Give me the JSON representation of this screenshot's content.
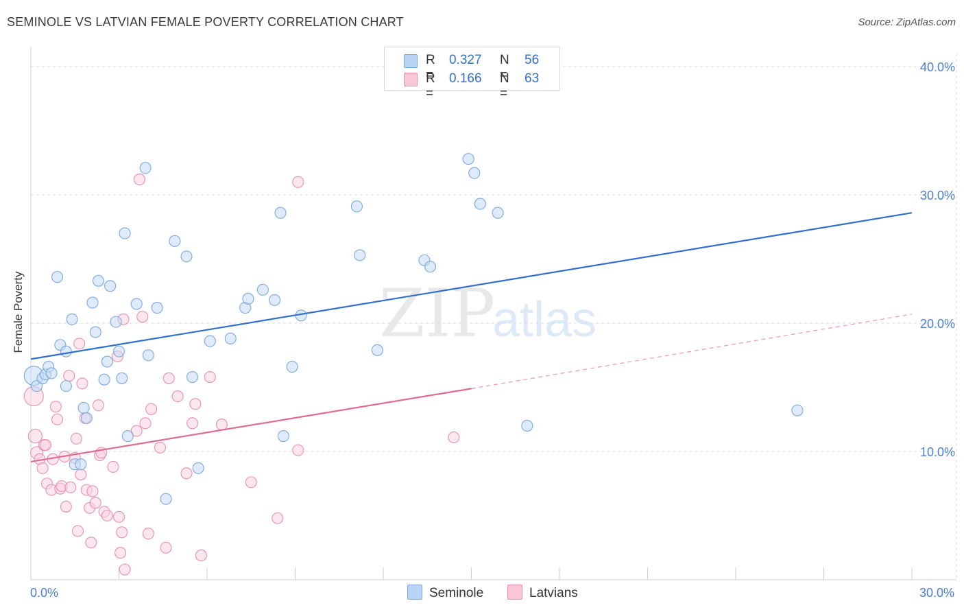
{
  "title": "SEMINOLE VS LATVIAN FEMALE POVERTY CORRELATION CHART",
  "source": "Source: ZipAtlas.com",
  "watermark": {
    "part1": "ZIP",
    "part2": "atlas"
  },
  "legend": {
    "r_label": "R =",
    "n_label": "N =",
    "entries": [
      {
        "name": "Seminole",
        "r": "0.327",
        "n": "56",
        "fill": "#b8d3f3",
        "stroke": "#7aa8e0"
      },
      {
        "name": "Latvians",
        "r": "0.166",
        "n": "63",
        "fill": "#f9c6d6",
        "stroke": "#e88fae"
      }
    ]
  },
  "colors": {
    "seminole_point": "#7aa8e0",
    "seminole_fill": "#c5dbf5",
    "seminole_line": "#2f6fd0",
    "latvian_point": "#e88fae",
    "latvian_fill": "#fad3e0",
    "latvian_line": "#e06a93",
    "axis_text": "#4a7fd0"
  },
  "chart_data": {
    "type": "scatter",
    "title": "SEMINOLE VS LATVIAN FEMALE POVERTY CORRELATION CHART",
    "xlabel": "",
    "ylabel": "Female Poverty",
    "xlim": [
      0,
      30
    ],
    "ylim": [
      0,
      40
    ],
    "x_tick_labels": [
      {
        "value": 0,
        "label": "0.0%"
      },
      {
        "value": 30,
        "label": "30.0%"
      }
    ],
    "y_tick_labels": [
      {
        "value": 10,
        "label": "10.0%"
      },
      {
        "value": 20,
        "label": "20.0%"
      },
      {
        "value": 30,
        "label": "30.0%"
      },
      {
        "value": 40,
        "label": "40.0%"
      }
    ],
    "grid": true,
    "series": [
      {
        "name": "Seminole",
        "trend": {
          "x0": 0,
          "y0": 17.2,
          "x1": 30,
          "y1": 28.6,
          "dashed_from": null
        },
        "points": [
          [
            0.1,
            15.9,
            14
          ],
          [
            0.2,
            15.1,
            8
          ],
          [
            0.4,
            15.7,
            8
          ],
          [
            0.5,
            16.0,
            8
          ],
          [
            0.6,
            16.6,
            8
          ],
          [
            0.7,
            16.1,
            8
          ],
          [
            0.9,
            23.6,
            8
          ],
          [
            1.0,
            18.3,
            8
          ],
          [
            1.2,
            17.8,
            8
          ],
          [
            1.2,
            15.1,
            8
          ],
          [
            1.4,
            20.3,
            8
          ],
          [
            1.5,
            9.0,
            8
          ],
          [
            1.7,
            9.0,
            8
          ],
          [
            1.8,
            13.4,
            8
          ],
          [
            1.9,
            12.6,
            8
          ],
          [
            2.1,
            21.6,
            8
          ],
          [
            2.2,
            19.3,
            8
          ],
          [
            2.3,
            23.3,
            8
          ],
          [
            2.5,
            15.6,
            8
          ],
          [
            2.6,
            17.0,
            8
          ],
          [
            2.7,
            22.9,
            8
          ],
          [
            2.9,
            20.1,
            8
          ],
          [
            3.0,
            17.8,
            8
          ],
          [
            3.1,
            15.7,
            8
          ],
          [
            3.2,
            27.0,
            8
          ],
          [
            3.3,
            11.2,
            8
          ],
          [
            3.6,
            21.5,
            8
          ],
          [
            3.9,
            32.1,
            8
          ],
          [
            4.0,
            17.5,
            8
          ],
          [
            4.3,
            21.2,
            8
          ],
          [
            4.6,
            6.3,
            8
          ],
          [
            4.9,
            26.4,
            8
          ],
          [
            5.3,
            25.2,
            8
          ],
          [
            5.5,
            15.8,
            8
          ],
          [
            5.7,
            8.7,
            8
          ],
          [
            6.1,
            18.6,
            8
          ],
          [
            6.8,
            18.8,
            8
          ],
          [
            7.3,
            21.2,
            8
          ],
          [
            7.4,
            21.9,
            8
          ],
          [
            7.9,
            22.6,
            8
          ],
          [
            8.3,
            21.8,
            8
          ],
          [
            8.5,
            28.6,
            8
          ],
          [
            8.6,
            11.2,
            8
          ],
          [
            8.9,
            16.6,
            8
          ],
          [
            9.2,
            20.6,
            8
          ],
          [
            11.1,
            29.1,
            8
          ],
          [
            11.2,
            25.3,
            8
          ],
          [
            11.8,
            17.9,
            8
          ],
          [
            13.4,
            24.9,
            8
          ],
          [
            13.6,
            24.4,
            8
          ],
          [
            14.9,
            32.8,
            8
          ],
          [
            15.1,
            31.7,
            8
          ],
          [
            15.3,
            29.3,
            8
          ],
          [
            15.9,
            28.6,
            8
          ],
          [
            16.9,
            12.0,
            8
          ],
          [
            26.1,
            13.2,
            8
          ]
        ]
      },
      {
        "name": "Latvians",
        "trend": {
          "x0": 0,
          "y0": 9.2,
          "x1": 15.0,
          "y1": 14.9,
          "dashed_to_x": 30,
          "dashed_to_y": 20.7
        },
        "points": [
          [
            0.1,
            14.3,
            14
          ],
          [
            0.15,
            11.2,
            10
          ],
          [
            0.2,
            9.9,
            9
          ],
          [
            0.3,
            9.4,
            8
          ],
          [
            0.4,
            8.7,
            8
          ],
          [
            0.45,
            10.5,
            8
          ],
          [
            0.5,
            10.5,
            8
          ],
          [
            0.55,
            7.5,
            8
          ],
          [
            0.7,
            7.0,
            8
          ],
          [
            0.75,
            9.4,
            8
          ],
          [
            0.85,
            13.5,
            8
          ],
          [
            0.9,
            12.5,
            8
          ],
          [
            1.0,
            7.1,
            8
          ],
          [
            1.05,
            7.3,
            8
          ],
          [
            1.15,
            9.6,
            8
          ],
          [
            1.2,
            5.7,
            8
          ],
          [
            1.3,
            15.9,
            8
          ],
          [
            1.35,
            7.2,
            8
          ],
          [
            1.5,
            9.5,
            8
          ],
          [
            1.55,
            11.0,
            8
          ],
          [
            1.6,
            3.8,
            8
          ],
          [
            1.65,
            18.4,
            8
          ],
          [
            1.7,
            8.2,
            8
          ],
          [
            1.75,
            15.3,
            8
          ],
          [
            1.85,
            12.6,
            8
          ],
          [
            1.9,
            7.0,
            8
          ],
          [
            2.0,
            5.6,
            8
          ],
          [
            2.05,
            2.9,
            8
          ],
          [
            2.1,
            6.9,
            8
          ],
          [
            2.2,
            6.0,
            8
          ],
          [
            2.3,
            13.6,
            8
          ],
          [
            2.35,
            9.7,
            8
          ],
          [
            2.4,
            9.9,
            8
          ],
          [
            2.5,
            5.3,
            8
          ],
          [
            2.6,
            5.0,
            8
          ],
          [
            2.8,
            8.8,
            8
          ],
          [
            2.95,
            17.4,
            8
          ],
          [
            3.0,
            4.9,
            8
          ],
          [
            3.05,
            2.1,
            8
          ],
          [
            3.1,
            3.7,
            8
          ],
          [
            3.15,
            20.3,
            8
          ],
          [
            3.2,
            0.8,
            8
          ],
          [
            3.6,
            11.6,
            8
          ],
          [
            3.7,
            31.2,
            8
          ],
          [
            3.8,
            20.5,
            8
          ],
          [
            3.9,
            12.2,
            8
          ],
          [
            4.0,
            3.6,
            8
          ],
          [
            4.1,
            13.3,
            8
          ],
          [
            4.4,
            10.3,
            8
          ],
          [
            4.6,
            2.5,
            8
          ],
          [
            4.7,
            15.7,
            8
          ],
          [
            5.0,
            14.3,
            8
          ],
          [
            5.3,
            8.3,
            8
          ],
          [
            5.5,
            12.2,
            8
          ],
          [
            5.6,
            13.7,
            8
          ],
          [
            5.8,
            1.9,
            8
          ],
          [
            6.1,
            15.8,
            8
          ],
          [
            6.5,
            12.1,
            8
          ],
          [
            7.5,
            7.6,
            8
          ],
          [
            8.4,
            4.8,
            8
          ],
          [
            9.1,
            31.0,
            8
          ],
          [
            9.1,
            10.1,
            8
          ],
          [
            14.4,
            11.1,
            8
          ]
        ]
      }
    ]
  }
}
